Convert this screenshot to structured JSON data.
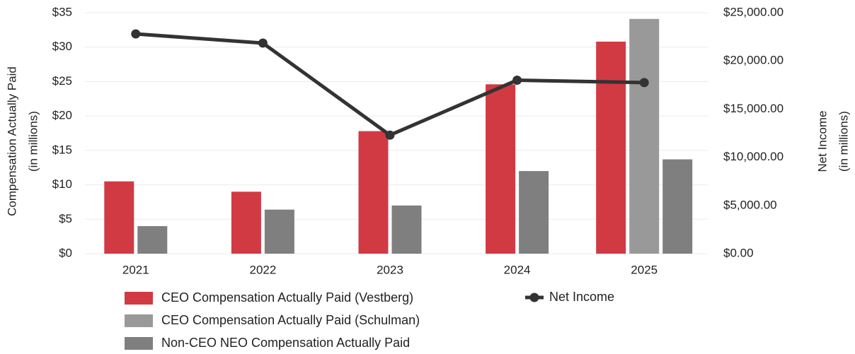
{
  "chart_data": {
    "type": "bar_line",
    "categories": [
      "2021",
      "2022",
      "2023",
      "2024",
      "2025"
    ],
    "y_label": [
      "Compensation Actually Paid",
      "(in millions)"
    ],
    "y2_label": [
      "Net Income",
      "(in millions)"
    ],
    "ylim": [
      0,
      35
    ],
    "yticks": [
      {
        "value": 0,
        "label": "$0"
      },
      {
        "value": 5,
        "label": "$5"
      },
      {
        "value": 10,
        "label": "$10"
      },
      {
        "value": 15,
        "label": "$15"
      },
      {
        "value": 20,
        "label": "$20"
      },
      {
        "value": 25,
        "label": "$25"
      },
      {
        "value": 30,
        "label": "$30"
      },
      {
        "value": 35,
        "label": "$35"
      }
    ],
    "y2lim": [
      0,
      25000
    ],
    "y2ticks": [
      {
        "value": 0,
        "label": "$0.00"
      },
      {
        "value": 5000,
        "label": "$5,000.00"
      },
      {
        "value": 10000,
        "label": "$10,000.00"
      },
      {
        "value": 15000,
        "label": "$15,000.00"
      },
      {
        "value": 20000,
        "label": "$20,000.00"
      },
      {
        "value": 25000,
        "label": "$25,000.00"
      }
    ],
    "grid": true,
    "series": [
      {
        "name": "CEO Compensation Actually Paid (Vestberg)",
        "color": "#d13a43",
        "type": "bar",
        "values": [
          10.5,
          9.0,
          17.8,
          24.6,
          30.8
        ]
      },
      {
        "name": "CEO Compensation Actually Paid (Schulman)",
        "color": "#999999",
        "type": "bar",
        "values": [
          null,
          null,
          null,
          null,
          34.1
        ]
      },
      {
        "name": "Non-CEO NEO Compensation Actually Paid",
        "color": "#7f7f7f",
        "type": "bar",
        "values": [
          4.0,
          6.4,
          7.0,
          12.0,
          13.7
        ]
      },
      {
        "name": "Net Income",
        "color": "#333333",
        "type": "line",
        "axis": "y2",
        "values": [
          22800,
          21850,
          12300,
          18000,
          17750
        ]
      }
    ]
  }
}
